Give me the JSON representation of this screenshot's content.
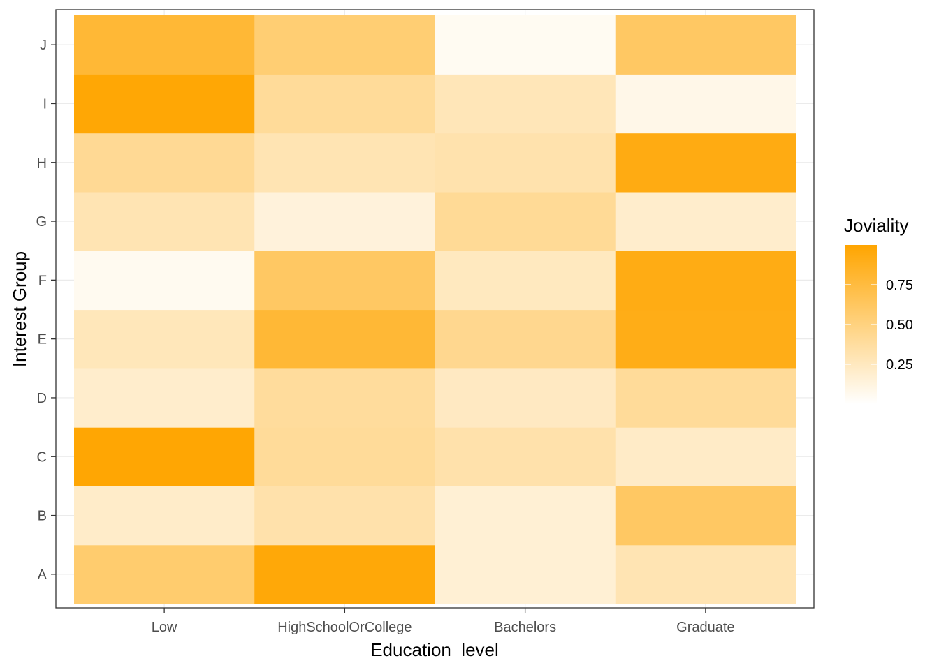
{
  "chart_data": {
    "type": "heatmap",
    "title": "",
    "xlabel": "Education  level",
    "ylabel": "Interest Group",
    "x_categories": [
      "Low",
      "HighSchoolOrCollege",
      "Bachelors",
      "Graduate"
    ],
    "y_categories": [
      "A",
      "B",
      "C",
      "D",
      "E",
      "F",
      "G",
      "H",
      "I",
      "J"
    ],
    "values": [
      [
        0.57,
        0.97,
        0.17,
        0.3
      ],
      [
        0.21,
        0.33,
        0.17,
        0.61
      ],
      [
        0.99,
        0.4,
        0.33,
        0.22
      ],
      [
        0.2,
        0.39,
        0.24,
        0.4
      ],
      [
        0.27,
        0.79,
        0.44,
        0.91
      ],
      [
        0.06,
        0.61,
        0.25,
        0.92
      ],
      [
        0.3,
        0.14,
        0.41,
        0.2
      ],
      [
        0.42,
        0.3,
        0.32,
        0.93
      ],
      [
        0.98,
        0.4,
        0.28,
        0.09
      ],
      [
        0.79,
        0.55,
        0.05,
        0.61
      ]
    ],
    "legend": {
      "title": "Joviality",
      "position": "right",
      "ticks": [
        0.25,
        0.5,
        0.75
      ],
      "tick_labels": [
        "0.25",
        "0.50",
        "0.75"
      ],
      "range": [
        0.0,
        1.0
      ]
    },
    "colors": {
      "low": "#FFFFFF",
      "high": "#FFA500"
    },
    "grid": true
  }
}
